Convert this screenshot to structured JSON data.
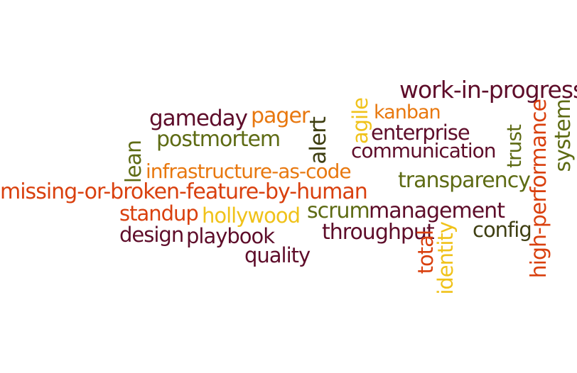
{
  "palette": {
    "maroon": "#5e0d2a",
    "orange": "#e8780f",
    "olive": "#5e6b14",
    "red": "#d9400e",
    "dark_olive": "#3f3f12",
    "gold": "#f0c21a"
  },
  "words": [
    {
      "text": "work-in-progress",
      "color": "#5e0d2a"
    },
    {
      "text": "gameday",
      "color": "#5e0d2a"
    },
    {
      "text": "pager",
      "color": "#e8780f"
    },
    {
      "text": "kanban",
      "color": "#e8780f"
    },
    {
      "text": "enterprise",
      "color": "#5e0d2a"
    },
    {
      "text": "postmortem",
      "color": "#5e6b14"
    },
    {
      "text": "communication",
      "color": "#5e0d2a"
    },
    {
      "text": "infrastructure-as-code",
      "color": "#e8780f"
    },
    {
      "text": "transparency",
      "color": "#5e6b14"
    },
    {
      "text": "missing-or-broken-feature-by-human",
      "color": "#d9400e"
    },
    {
      "text": "standup",
      "color": "#d9400e"
    },
    {
      "text": "hollywood",
      "color": "#f0c21a"
    },
    {
      "text": "scrum",
      "color": "#5e6b14"
    },
    {
      "text": "management",
      "color": "#5e0d2a"
    },
    {
      "text": "design",
      "color": "#5e0d2a"
    },
    {
      "text": "playbook",
      "color": "#5e0d2a"
    },
    {
      "text": "throughput",
      "color": "#5e0d2a"
    },
    {
      "text": "config",
      "color": "#3f3f12"
    },
    {
      "text": "quality",
      "color": "#5e0d2a"
    },
    {
      "text": "lean",
      "color": "#5e6b14"
    },
    {
      "text": "alert",
      "color": "#3f3f12"
    },
    {
      "text": "agile",
      "color": "#f0c21a"
    },
    {
      "text": "trust",
      "color": "#5e6b14"
    },
    {
      "text": "system",
      "color": "#5e6b14"
    },
    {
      "text": "high-performance",
      "color": "#d9400e"
    },
    {
      "text": "total",
      "color": "#d9400e"
    },
    {
      "text": "identity",
      "color": "#f0c21a"
    }
  ]
}
